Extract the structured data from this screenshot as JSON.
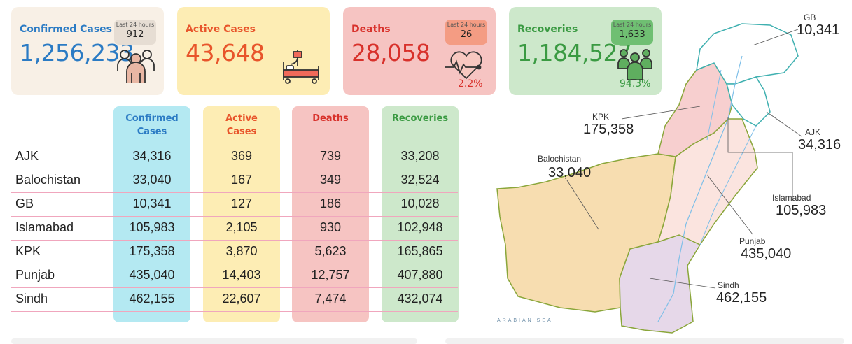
{
  "cards": {
    "confirmed": {
      "title": "Confirmed Cases",
      "value": "1,256,233",
      "last24_label": "Last 24 hours",
      "last24_value": "912",
      "bg": "#f8f0e6",
      "color": "#2b7bc4",
      "icon": "people-group-icon"
    },
    "active": {
      "title": "Active Cases",
      "value": "43,648",
      "bg": "#fdedb4",
      "color": "#e8552b",
      "icon": "hospital-bed-icon"
    },
    "deaths": {
      "title": "Deaths",
      "value": "28,058",
      "last24_label": "Last 24 hours",
      "last24_value": "26",
      "pct": "2.2%",
      "bg": "#f6c4c2",
      "color": "#d8312b",
      "icon": "heart-pulse-icon"
    },
    "recoveries": {
      "title": "Recoveries",
      "value": "1,184,527",
      "last24_label": "Last 24 hours",
      "last24_value": "1,633",
      "pct": "94.3%",
      "bg": "#cde8cb",
      "color": "#3a9a42",
      "icon": "recovered-people-icon"
    }
  },
  "table": {
    "headers": [
      {
        "line1": "Confirmed",
        "line2": "Cases",
        "color": "#2b7bc4",
        "bg": "#b4e9f2"
      },
      {
        "line1": "Active",
        "line2": "Cases",
        "color": "#e8552b",
        "bg": "#fdedb4"
      },
      {
        "line1": "Deaths",
        "line2": "",
        "color": "#d8312b",
        "bg": "#f6c4c2"
      },
      {
        "line1": "Recoveries",
        "line2": "",
        "color": "#3a9a42",
        "bg": "#cde8cb"
      }
    ],
    "rows": [
      {
        "region": "AJK",
        "confirmed": "34,316",
        "active": "369",
        "deaths": "739",
        "recoveries": "33,208"
      },
      {
        "region": "Balochistan",
        "confirmed": "33,040",
        "active": "167",
        "deaths": "349",
        "recoveries": "32,524"
      },
      {
        "region": "GB",
        "confirmed": "10,341",
        "active": "127",
        "deaths": "186",
        "recoveries": "10,028"
      },
      {
        "region": "Islamabad",
        "confirmed": "105,983",
        "active": "2,105",
        "deaths": "930",
        "recoveries": "102,948"
      },
      {
        "region": "KPK",
        "confirmed": "175,358",
        "active": "3,870",
        "deaths": "5,623",
        "recoveries": "165,865"
      },
      {
        "region": "Punjab",
        "confirmed": "435,040",
        "active": "14,403",
        "deaths": "12,757",
        "recoveries": "407,880"
      },
      {
        "region": "Sindh",
        "confirmed": "462,155",
        "active": "22,607",
        "deaths": "7,474",
        "recoveries": "432,074"
      }
    ]
  },
  "map": {
    "sea_label": "ARABIAN SEA",
    "callouts": [
      {
        "id": "gb",
        "label": "GB",
        "value": "10,341"
      },
      {
        "id": "kpk",
        "label": "KPK",
        "value": "175,358"
      },
      {
        "id": "ajk",
        "label": "AJK",
        "value": "34,316"
      },
      {
        "id": "balochistan",
        "label": "Balochistan",
        "value": "33,040"
      },
      {
        "id": "islamabad",
        "label": "Islamabad",
        "value": "105,983"
      },
      {
        "id": "punjab",
        "label": "Punjab",
        "value": "435,040"
      },
      {
        "id": "sindh",
        "label": "Sindh",
        "value": "462,155"
      }
    ],
    "region_colors": {
      "balochistan": "#f7ddb0",
      "sindh": "#e6d8e9",
      "punjab": "#fbe4df",
      "kpk": "#f7cfcf",
      "gb": "#ffffff",
      "ajk": "#ffffff",
      "border": "#7fbf3f",
      "river": "#7fbfe8"
    }
  }
}
